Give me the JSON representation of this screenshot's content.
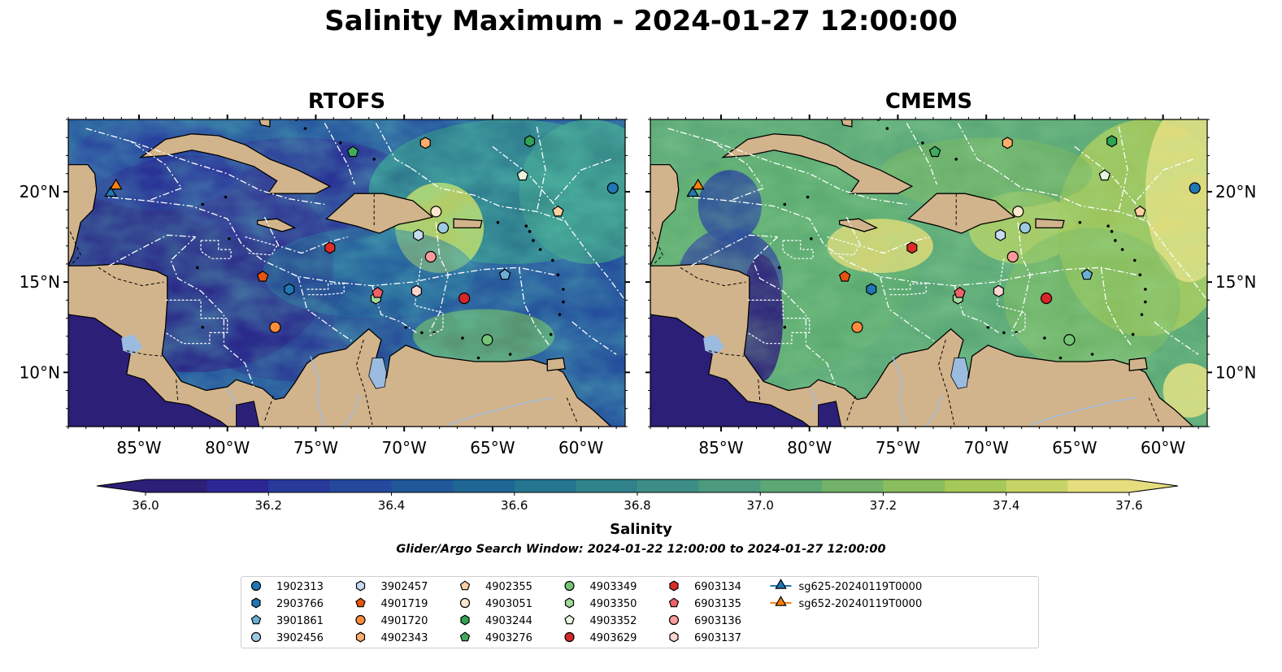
{
  "title": "Salinity Maximum - 2024-01-27 12:00:00",
  "panels": [
    {
      "title": "RTOFS",
      "theme": "rtofs"
    },
    {
      "title": "CMEMS",
      "theme": "cmems"
    }
  ],
  "axes": {
    "lon_range": [
      -89,
      -57.5
    ],
    "lat_range": [
      7,
      24
    ],
    "lon_ticks": [
      "85°W",
      "80°W",
      "75°W",
      "70°W",
      "65°W",
      "60°W"
    ],
    "lon_tick_values": [
      -85,
      -80,
      -75,
      -70,
      -65,
      -60
    ],
    "lat_ticks": [
      "20°N",
      "15°N",
      "10°N"
    ],
    "lat_tick_values": [
      20,
      15,
      10
    ]
  },
  "colorbar": {
    "label": "Salinity",
    "min": 36.0,
    "max": 37.6,
    "step": 0.1,
    "ticks": [
      "36.0",
      "36.2",
      "36.4",
      "36.6",
      "36.8",
      "37.0",
      "37.2",
      "37.4",
      "37.6"
    ],
    "colors": [
      "#2b1f78",
      "#2d2796",
      "#283a9c",
      "#25489c",
      "#21589a",
      "#1f6695",
      "#24758f",
      "#30828b",
      "#3d8e86",
      "#4d9a7e",
      "#5da775",
      "#72b269",
      "#89bd5e",
      "#a6c858",
      "#c6d466",
      "#e6de7e"
    ]
  },
  "search_window": "Glider/Argo Search Window: 2024-01-22 12:00:00 to 2024-01-27 12:00:00",
  "colors": {
    "land": "#d2b48c",
    "lake": "#9bbbe0",
    "coast": "#000000",
    "boundary": "#ffffff"
  },
  "legend": [
    {
      "label": "1902313",
      "marker": "circle",
      "color": "#1f77b4"
    },
    {
      "label": "2903766",
      "marker": "hexagon",
      "color": "#1f77b4"
    },
    {
      "label": "3901861",
      "marker": "pentagon",
      "color": "#6baed6"
    },
    {
      "label": "3902456",
      "marker": "circle",
      "color": "#9ecae1"
    },
    {
      "label": "3902457",
      "marker": "hexagon",
      "color": "#c6dbef"
    },
    {
      "label": "4901719",
      "marker": "pentagon",
      "color": "#e6550d"
    },
    {
      "label": "4901720",
      "marker": "circle",
      "color": "#fd8d3c"
    },
    {
      "label": "4902343",
      "marker": "hexagon",
      "color": "#fdae6b"
    },
    {
      "label": "4902355",
      "marker": "pentagon",
      "color": "#fdd0a2"
    },
    {
      "label": "4903051",
      "marker": "circle",
      "color": "#fee6ce"
    },
    {
      "label": "4903244",
      "marker": "hexagon",
      "color": "#31a354"
    },
    {
      "label": "4903276",
      "marker": "pentagon",
      "color": "#41ab5d"
    },
    {
      "label": "4903349",
      "marker": "circle",
      "color": "#74c476"
    },
    {
      "label": "4903350",
      "marker": "hexagon",
      "color": "#a1d99b"
    },
    {
      "label": "4903352",
      "marker": "pentagon",
      "color": "#e5f5e0"
    },
    {
      "label": "4903629",
      "marker": "circle",
      "color": "#d62728"
    },
    {
      "label": "6903134",
      "marker": "hexagon",
      "color": "#de2d26"
    },
    {
      "label": "6903135",
      "marker": "pentagon",
      "color": "#f0626a"
    },
    {
      "label": "6903136",
      "marker": "circle",
      "color": "#fc9b9b"
    },
    {
      "label": "6903137",
      "marker": "hexagon",
      "color": "#fcd5d0"
    },
    {
      "label": "sg625-20240119T0000",
      "marker": "triangle",
      "color": "#1f77b4"
    },
    {
      "label": "sg652-20240119T0000",
      "marker": "triangle",
      "color": "#ff7f0e"
    }
  ],
  "observations": [
    {
      "id": "1902313",
      "lon": -58.2,
      "lat": 20.2
    },
    {
      "id": "2903766",
      "lon": -76.5,
      "lat": 14.6
    },
    {
      "id": "3901861",
      "lon": -64.3,
      "lat": 15.4
    },
    {
      "id": "3902456",
      "lon": -67.8,
      "lat": 18.0
    },
    {
      "id": "3902457",
      "lon": -69.2,
      "lat": 17.6
    },
    {
      "id": "4901719",
      "lon": -78.0,
      "lat": 15.3
    },
    {
      "id": "4901720",
      "lon": -77.3,
      "lat": 12.5
    },
    {
      "id": "4902343",
      "lon": -68.8,
      "lat": 22.7
    },
    {
      "id": "4902355",
      "lon": -61.3,
      "lat": 18.9
    },
    {
      "id": "4903051",
      "lon": -68.2,
      "lat": 18.9
    },
    {
      "id": "4903244",
      "lon": -62.9,
      "lat": 22.8
    },
    {
      "id": "4903276",
      "lon": -72.9,
      "lat": 22.2
    },
    {
      "id": "4903349",
      "lon": -65.3,
      "lat": 11.8
    },
    {
      "id": "4903350",
      "lon": -71.6,
      "lat": 14.1
    },
    {
      "id": "4903352",
      "lon": -63.3,
      "lat": 20.9
    },
    {
      "id": "4903629",
      "lon": -66.6,
      "lat": 14.1
    },
    {
      "id": "6903134",
      "lon": -74.2,
      "lat": 16.9
    },
    {
      "id": "6903135",
      "lon": -71.5,
      "lat": 14.4
    },
    {
      "id": "6903136",
      "lon": -68.5,
      "lat": 16.4
    },
    {
      "id": "6903137",
      "lon": -69.3,
      "lat": 14.5
    },
    {
      "id": "sg625-20240119T0000",
      "lon": -86.6,
      "lat": 20.0
    },
    {
      "id": "sg652-20240119T0000",
      "lon": -86.3,
      "lat": 20.4
    }
  ]
}
